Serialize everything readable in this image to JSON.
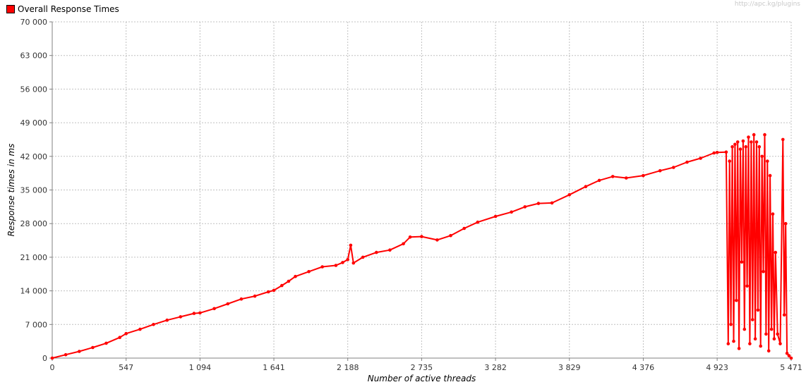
{
  "legend": {
    "label": "Overall Response Times",
    "color": "#ff0000"
  },
  "watermark": "http://apc.kg/plugins",
  "chart_data": {
    "type": "line",
    "title": "",
    "xlabel": "Number of active threads",
    "ylabel": "Response times in ms",
    "xlim": [
      0,
      5471
    ],
    "ylim": [
      0,
      70000
    ],
    "x_ticks": [
      0,
      547,
      1094,
      1641,
      2188,
      2735,
      3282,
      3829,
      4376,
      4923,
      5471
    ],
    "x_tick_labels": [
      "0",
      "547",
      "1 094",
      "1 641",
      "2 188",
      "2 735",
      "3 282",
      "3 829",
      "4 376",
      "4 923",
      "5 471"
    ],
    "y_ticks": [
      0,
      7000,
      14000,
      21000,
      28000,
      35000,
      42000,
      49000,
      56000,
      63000,
      70000
    ],
    "y_tick_labels": [
      "0",
      "7 000",
      "14 000",
      "21 000",
      "28 000",
      "35 000",
      "42 000",
      "49 000",
      "56 000",
      "63 000",
      "70 000"
    ],
    "grid": true,
    "legend_position": "top-left",
    "series": [
      {
        "name": "Overall Response Times",
        "color": "#ff0000",
        "points": [
          [
            0,
            0
          ],
          [
            100,
            700
          ],
          [
            200,
            1400
          ],
          [
            300,
            2200
          ],
          [
            400,
            3100
          ],
          [
            500,
            4300
          ],
          [
            547,
            5100
          ],
          [
            650,
            6000
          ],
          [
            750,
            7000
          ],
          [
            850,
            7900
          ],
          [
            950,
            8600
          ],
          [
            1050,
            9300
          ],
          [
            1094,
            9400
          ],
          [
            1200,
            10300
          ],
          [
            1300,
            11300
          ],
          [
            1400,
            12300
          ],
          [
            1500,
            12900
          ],
          [
            1600,
            13800
          ],
          [
            1641,
            14100
          ],
          [
            1700,
            15100
          ],
          [
            1750,
            16000
          ],
          [
            1800,
            17000
          ],
          [
            1900,
            18000
          ],
          [
            2000,
            19000
          ],
          [
            2100,
            19300
          ],
          [
            2150,
            19900
          ],
          [
            2188,
            20500
          ],
          [
            2210,
            23500
          ],
          [
            2230,
            19800
          ],
          [
            2300,
            21000
          ],
          [
            2400,
            22000
          ],
          [
            2500,
            22500
          ],
          [
            2600,
            23800
          ],
          [
            2650,
            25200
          ],
          [
            2735,
            25300
          ],
          [
            2850,
            24600
          ],
          [
            2950,
            25500
          ],
          [
            3050,
            27000
          ],
          [
            3150,
            28300
          ],
          [
            3282,
            29500
          ],
          [
            3400,
            30400
          ],
          [
            3500,
            31500
          ],
          [
            3600,
            32200
          ],
          [
            3700,
            32300
          ],
          [
            3829,
            34000
          ],
          [
            3950,
            35700
          ],
          [
            4050,
            37000
          ],
          [
            4150,
            37800
          ],
          [
            4250,
            37500
          ],
          [
            4376,
            38000
          ],
          [
            4500,
            39000
          ],
          [
            4600,
            39700
          ],
          [
            4700,
            40800
          ],
          [
            4800,
            41600
          ],
          [
            4900,
            42700
          ],
          [
            4923,
            42800
          ],
          [
            4990,
            42900
          ],
          [
            5005,
            3000
          ],
          [
            5015,
            41000
          ],
          [
            5025,
            7000
          ],
          [
            5035,
            44000
          ],
          [
            5045,
            3500
          ],
          [
            5055,
            44500
          ],
          [
            5065,
            12000
          ],
          [
            5075,
            45000
          ],
          [
            5085,
            2000
          ],
          [
            5095,
            43500
          ],
          [
            5105,
            20000
          ],
          [
            5115,
            45200
          ],
          [
            5125,
            6000
          ],
          [
            5135,
            44000
          ],
          [
            5145,
            15000
          ],
          [
            5155,
            46000
          ],
          [
            5165,
            3000
          ],
          [
            5175,
            45000
          ],
          [
            5185,
            8000
          ],
          [
            5195,
            46500
          ],
          [
            5205,
            4000
          ],
          [
            5215,
            45000
          ],
          [
            5225,
            10000
          ],
          [
            5235,
            44000
          ],
          [
            5245,
            2500
          ],
          [
            5255,
            42000
          ],
          [
            5265,
            18000
          ],
          [
            5275,
            46500
          ],
          [
            5285,
            5000
          ],
          [
            5295,
            41000
          ],
          [
            5305,
            1500
          ],
          [
            5315,
            38000
          ],
          [
            5325,
            6000
          ],
          [
            5335,
            30000
          ],
          [
            5345,
            4000
          ],
          [
            5355,
            22000
          ],
          [
            5370,
            5000
          ],
          [
            5390,
            3000
          ],
          [
            5410,
            45500
          ],
          [
            5420,
            9000
          ],
          [
            5430,
            28000
          ],
          [
            5440,
            1000
          ],
          [
            5455,
            500
          ],
          [
            5471,
            0
          ]
        ]
      }
    ]
  }
}
